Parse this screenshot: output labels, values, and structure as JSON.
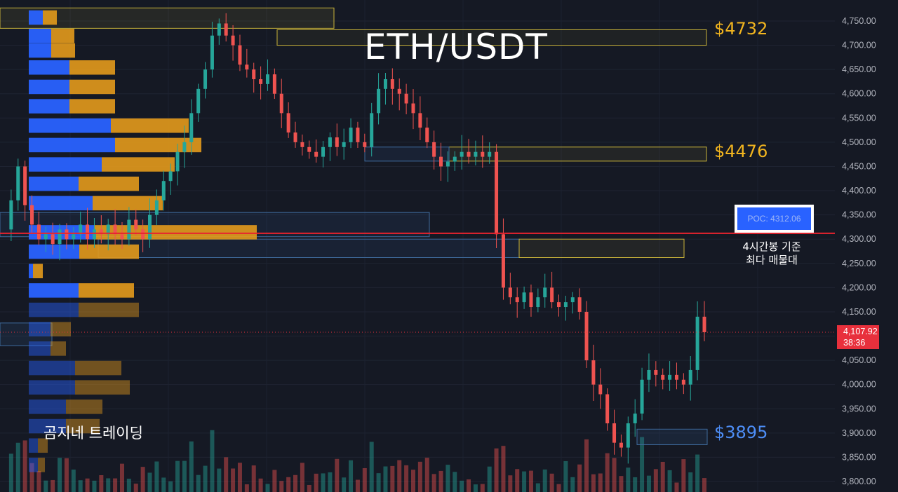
{
  "title": "ETH/USDT",
  "watermark": "곰지네 트레이딩",
  "levels": [
    {
      "id": "l4732",
      "label": "$4732",
      "color": "#f2b51f"
    },
    {
      "id": "l4476",
      "label": "$4476",
      "color": "#f2b51f"
    },
    {
      "id": "l3895",
      "label": "$3895",
      "color": "#4d8ef7"
    }
  ],
  "poc": {
    "label": "POC: 4312.06",
    "note_line1": "4시간봉 기준",
    "note_line2": "최다 매물대",
    "value": 4312.06
  },
  "current_price": {
    "price": "4,107.92",
    "countdown": "38:36",
    "value": 4107.92
  },
  "colors": {
    "background": "#151924",
    "up": "#26a69a",
    "down": "#ef5350",
    "poc_line": "#e8232e",
    "profile_buy": "#2962ff",
    "profile_sell": "#e39a1c"
  },
  "chart_data": {
    "type": "candlestick",
    "title": "ETH/USDT",
    "y_axis": {
      "ticks": [
        "4,750.00",
        "4,700.00",
        "4,650.00",
        "4,600.00",
        "4,550.00",
        "4,500.00",
        "4,450.00",
        "4,400.00",
        "4,350.00",
        "4,300.00",
        "4,250.00",
        "4,200.00",
        "4,150.00",
        "4,100.00",
        "4,050.00",
        "4,000.00",
        "3,950.00",
        "3,900.00",
        "3,850.00",
        "3,800.00"
      ],
      "range": [
        3790,
        4775
      ],
      "position": "right"
    },
    "grid": true,
    "annotated_levels": [
      4732,
      4476,
      4312.06,
      3895
    ],
    "close_path": [
      4320,
      4380,
      4450,
      4370,
      4330,
      4300,
      4310,
      4290,
      4320,
      4300,
      4310,
      4330,
      4300,
      4320,
      4310,
      4330,
      4310,
      4300,
      4340,
      4320,
      4300,
      4350,
      4380,
      4420,
      4440,
      4480,
      4500,
      4560,
      4610,
      4650,
      4720,
      4745,
      4720,
      4700,
      4660,
      4650,
      4630,
      4620,
      4640,
      4600,
      4560,
      4520,
      4500,
      4490,
      4480,
      4470,
      4490,
      4510,
      4490,
      4500,
      4530,
      4500,
      4490,
      4560,
      4610,
      4630,
      4610,
      4600,
      4580,
      4560,
      4530,
      4500,
      4470,
      4450,
      4460,
      4470,
      4480,
      4470,
      4480,
      4470,
      4480,
      4310,
      4200,
      4180,
      4170,
      4190,
      4160,
      4180,
      4200,
      4170,
      4160,
      4170,
      4180,
      4150,
      4050,
      4000,
      3980,
      3920,
      3880,
      3870,
      3920,
      3940,
      4010,
      4030,
      4020,
      4010,
      4020,
      4010,
      4000,
      4030,
      4140,
      4108
    ],
    "volume_profile": [
      {
        "price": 4755,
        "buy": 20,
        "sell": 20
      },
      {
        "price": 4717,
        "buy": 32,
        "sell": 33
      },
      {
        "price": 4687,
        "buy": 32,
        "sell": 34
      },
      {
        "price": 4652,
        "buy": 58,
        "sell": 65
      },
      {
        "price": 4612,
        "buy": 58,
        "sell": 65
      },
      {
        "price": 4572,
        "buy": 58,
        "sell": 65
      },
      {
        "price": 4532,
        "buy": 117,
        "sell": 111
      },
      {
        "price": 4492,
        "buy": 123,
        "sell": 123
      },
      {
        "price": 4452,
        "buy": 104,
        "sell": 104
      },
      {
        "price": 4412,
        "buy": 71,
        "sell": 86
      },
      {
        "price": 4372,
        "buy": 91,
        "sell": 100
      },
      {
        "price": 4312,
        "buy": 93,
        "sell": 232
      },
      {
        "price": 4272,
        "buy": 72,
        "sell": 85
      },
      {
        "price": 4232,
        "buy": 6,
        "sell": 14
      },
      {
        "price": 4192,
        "buy": 71,
        "sell": 79
      },
      {
        "price": 4152,
        "buy": 71,
        "sell": 86
      },
      {
        "price": 4112,
        "buy": 31,
        "sell": 29
      },
      {
        "price": 4072,
        "buy": 31,
        "sell": 22
      },
      {
        "price": 4032,
        "buy": 66,
        "sell": 66
      },
      {
        "price": 3992,
        "buy": 66,
        "sell": 78
      },
      {
        "price": 3952,
        "buy": 53,
        "sell": 52
      },
      {
        "price": 3912,
        "buy": 53,
        "sell": 48
      },
      {
        "price": 3872,
        "buy": 13,
        "sell": 14
      },
      {
        "price": 3832,
        "buy": 13,
        "sell": 10
      }
    ]
  }
}
